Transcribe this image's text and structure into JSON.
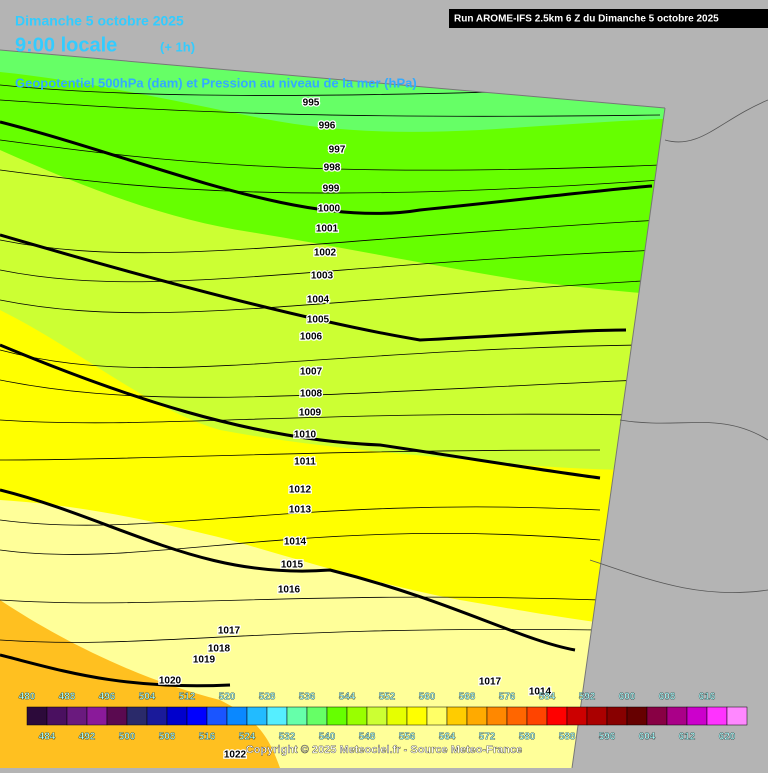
{
  "header": {
    "date": "Dimanche 5 octobre 2025",
    "time": "9:00 locale",
    "offset": "(+ 1h)",
    "parameter": "Geopotentiel 500hPa (dam) et Pression au niveau de la mer (hPa)",
    "run": "Run AROME-IFS 2.5km 6 Z du Dimanche 5 octobre 2025"
  },
  "isobars": [
    "995",
    "996",
    "997",
    "998",
    "999",
    "1000",
    "1001",
    "1002",
    "1003",
    "1004",
    "1005",
    "1006",
    "1007",
    "1008",
    "1009",
    "1010",
    "1011",
    "1012",
    "1013",
    "1014",
    "1015",
    "1016",
    "1017",
    "1018",
    "1019",
    "1020",
    "1017",
    "1014",
    "1022"
  ],
  "legend": {
    "top_labels": [
      480,
      488,
      496,
      504,
      512,
      520,
      528,
      536,
      544,
      552,
      560,
      568,
      576,
      584,
      592,
      600,
      608,
      616
    ],
    "bottom_labels": [
      484,
      492,
      500,
      508,
      516,
      524,
      532,
      540,
      548,
      556,
      564,
      572,
      580,
      588,
      596,
      604,
      612,
      620
    ],
    "colors": [
      "#2c0a3a",
      "#4a1060",
      "#6a1a7e",
      "#8a1a9a",
      "#5a0a50",
      "#2a2a6a",
      "#1a1a9a",
      "#0000cc",
      "#0000ff",
      "#1a55ff",
      "#0a88ff",
      "#22bbff",
      "#55eeff",
      "#66ffaa",
      "#66ff66",
      "#66ff00",
      "#99ff00",
      "#ccff33",
      "#e6ff00",
      "#ffff00",
      "#ffff66",
      "#ffcc00",
      "#ffaa00",
      "#ff8800",
      "#ff6600",
      "#ff4400",
      "#ff0000",
      "#cc0000",
      "#aa0000",
      "#880000",
      "#660000",
      "#880044",
      "#aa0088",
      "#cc00cc",
      "#ff33ff",
      "#ff88ff"
    ]
  },
  "footer": {
    "copyright": "Copyright © 2025 Meteociel.fr - Source Meteo-France"
  }
}
